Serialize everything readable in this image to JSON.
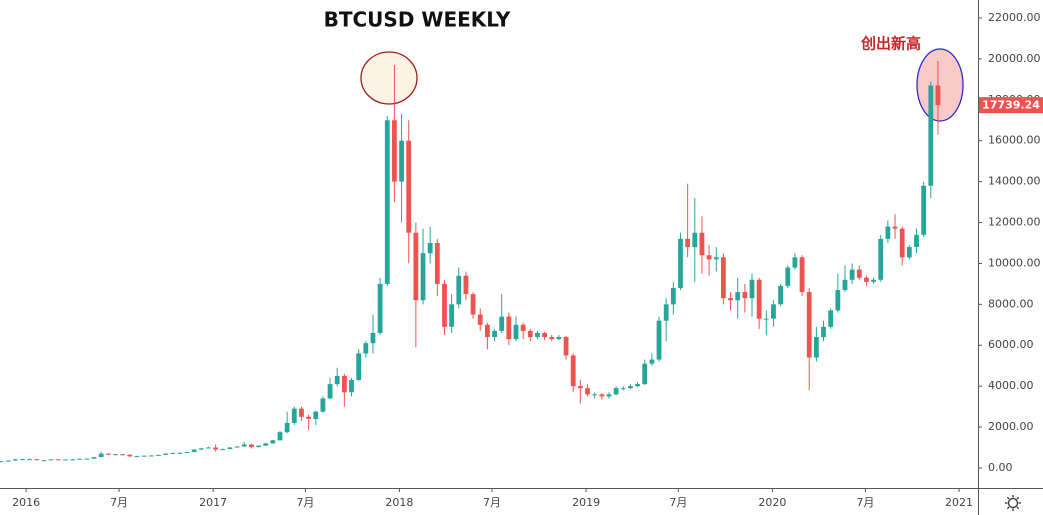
{
  "chart_data": {
    "type": "candlestick",
    "title": "BTCUSD WEEKLY",
    "annotation": "创出新高",
    "up_color": "#26a69a",
    "down_color": "#ef5350",
    "xlim": [
      -7.3,
      266.2
    ],
    "xticks": [
      {
        "value": 0,
        "label": "2016"
      },
      {
        "value": 26,
        "label": "7月"
      },
      {
        "value": 52.3,
        "label": "2017"
      },
      {
        "value": 78.1,
        "label": "7月"
      },
      {
        "value": 104.4,
        "label": "2018"
      },
      {
        "value": 130.3,
        "label": "7月"
      },
      {
        "value": 156.6,
        "label": "2019"
      },
      {
        "value": 182.4,
        "label": "7月"
      },
      {
        "value": 208.7,
        "label": "2020"
      },
      {
        "value": 234.7,
        "label": "7月"
      },
      {
        "value": 260.9,
        "label": "2021"
      }
    ],
    "ylim": [
      -980,
      22880
    ],
    "yticks": [
      {
        "value": 0,
        "label": "0.00"
      },
      {
        "value": 2000,
        "label": "2000.00"
      },
      {
        "value": 4000,
        "label": "4000.00"
      },
      {
        "value": 6000,
        "label": "6000.00"
      },
      {
        "value": 8000,
        "label": "8000.00"
      },
      {
        "value": 10000,
        "label": "10000.00"
      },
      {
        "value": 12000,
        "label": "12000.00"
      },
      {
        "value": 14000,
        "label": "14000.00"
      },
      {
        "value": 16000,
        "label": "16000.00"
      },
      {
        "value": 18000,
        "label": "18000.00"
      },
      {
        "value": 20000,
        "label": "20000.00"
      },
      {
        "value": 22000,
        "label": "22000.00"
      }
    ],
    "x": [
      -7,
      -5,
      -3,
      -1,
      1,
      3,
      5,
      7,
      9,
      11,
      13,
      15,
      17,
      19,
      21,
      23,
      25,
      27,
      29,
      31,
      33,
      35,
      37,
      39,
      41,
      43,
      45,
      47,
      49,
      51,
      53,
      55,
      57,
      59,
      61,
      63,
      65,
      67,
      69,
      71,
      73,
      75,
      77,
      79,
      81,
      83,
      85,
      87,
      89,
      91,
      93,
      95,
      97,
      99,
      101,
      103,
      105,
      107,
      109,
      111,
      113,
      115,
      117,
      119,
      121,
      123,
      125,
      127,
      129,
      131,
      133,
      135,
      137,
      139,
      141,
      143,
      145,
      147,
      149,
      151,
      153,
      155,
      157,
      159,
      161,
      163,
      165,
      167,
      169,
      171,
      173,
      175,
      177,
      179,
      181,
      183,
      185,
      187,
      189,
      191,
      193,
      195,
      197,
      199,
      201,
      203,
      205,
      207,
      209,
      211,
      213,
      215,
      217,
      219,
      221,
      223,
      225,
      227,
      229,
      231,
      233,
      235,
      237,
      239,
      241,
      243,
      245,
      247,
      249,
      251,
      253,
      255
    ],
    "open": [
      320,
      330,
      360,
      420,
      430,
      430,
      380,
      380,
      420,
      410,
      415,
      420,
      450,
      455,
      530,
      700,
      660,
      670,
      650,
      570,
      580,
      600,
      610,
      640,
      700,
      730,
      740,
      780,
      900,
      960,
      1000,
      900,
      920,
      1000,
      1050,
      1150,
      1020,
      1090,
      1200,
      1350,
      1750,
      2200,
      2900,
      2500,
      2400,
      2750,
      3400,
      4100,
      4500,
      3700,
      4300,
      5600,
      6100,
      6600,
      9000,
      17000,
      14000,
      16000,
      11500,
      8200,
      10500,
      11000,
      9000,
      6900,
      8000,
      9400,
      8500,
      7500,
      7000,
      6400,
      6700,
      7400,
      6300,
      7000,
      6700,
      6400,
      6600,
      6400,
      6300,
      6400,
      5500,
      4000,
      3900,
      3600,
      3600,
      3500,
      3600,
      3900,
      3900,
      4000,
      4100,
      5100,
      5300,
      7200,
      8000,
      8800,
      11200,
      10800,
      11500,
      10400,
      10200,
      10300,
      8300,
      8200,
      8600,
      8300,
      9200,
      7300,
      7300,
      8000,
      8900,
      9800,
      10300,
      8600,
      5400,
      6400,
      6900,
      7700,
      8700,
      9200,
      9700,
      9300,
      9100,
      9200,
      11200,
      11800,
      11700,
      10300,
      10800,
      11400,
      13800,
      18700
    ],
    "high": [
      345,
      380,
      440,
      460,
      455,
      435,
      395,
      430,
      440,
      425,
      430,
      460,
      470,
      545,
      780,
      720,
      690,
      680,
      660,
      600,
      610,
      620,
      650,
      720,
      750,
      760,
      790,
      920,
      980,
      1030,
      1150,
      950,
      1020,
      1070,
      1280,
      1180,
      1110,
      1220,
      1370,
      1800,
      2750,
      3000,
      3000,
      2600,
      2800,
      3500,
      4400,
      4900,
      4600,
      4400,
      5800,
      6200,
      7500,
      9300,
      17200,
      19700,
      17300,
      17000,
      12000,
      11700,
      11800,
      11200,
      9200,
      8500,
      9800,
      9600,
      8600,
      7800,
      7100,
      6800,
      8500,
      7600,
      7400,
      7100,
      6800,
      6700,
      6650,
      6500,
      6500,
      6450,
      5600,
      4300,
      4100,
      3700,
      3650,
      3700,
      4000,
      4000,
      4100,
      4200,
      5300,
      5600,
      7400,
      8300,
      9100,
      11500,
      13900,
      13200,
      12300,
      10900,
      10800,
      10500,
      8600,
      9300,
      9000,
      9500,
      9300,
      7700,
      8200,
      9000,
      9900,
      10500,
      10400,
      8800,
      6900,
      7200,
      7800,
      9500,
      9900,
      10000,
      9900,
      9400,
      9300,
      11400,
      12100,
      12400,
      11800,
      10900,
      11700,
      14000,
      18900,
      19900
    ],
    "low": [
      310,
      325,
      355,
      410,
      420,
      370,
      365,
      375,
      400,
      400,
      410,
      415,
      440,
      450,
      525,
      620,
      640,
      620,
      520,
      560,
      570,
      595,
      605,
      635,
      690,
      720,
      730,
      770,
      880,
      950,
      800,
      880,
      910,
      990,
      1040,
      950,
      1000,
      1080,
      1190,
      1340,
      1700,
      2100,
      2300,
      1850,
      2100,
      2700,
      3350,
      4000,
      3000,
      3500,
      4250,
      5400,
      5600,
      6500,
      8900,
      13000,
      12000,
      10000,
      5900,
      8000,
      10000,
      8400,
      6500,
      6600,
      7800,
      8200,
      7300,
      6700,
      5800,
      6200,
      6600,
      6000,
      6200,
      6300,
      6200,
      6300,
      6250,
      6200,
      6250,
      5300,
      3700,
      3150,
      3500,
      3400,
      3350,
      3400,
      3550,
      3800,
      3850,
      3950,
      4050,
      5000,
      5200,
      6200,
      7500,
      8700,
      10300,
      9100,
      9500,
      9400,
      9600,
      8000,
      7700,
      7300,
      7600,
      7400,
      6800,
      6500,
      6900,
      7900,
      8800,
      9700,
      8400,
      3800,
      5200,
      6200,
      6800,
      7600,
      8600,
      9000,
      9200,
      8900,
      9000,
      9100,
      11000,
      11200,
      9900,
      10200,
      10500,
      11300,
      13200,
      16300
    ],
    "close": [
      330,
      360,
      420,
      430,
      430,
      380,
      380,
      420,
      410,
      415,
      420,
      450,
      455,
      530,
      700,
      660,
      670,
      650,
      570,
      580,
      600,
      610,
      640,
      700,
      730,
      740,
      780,
      900,
      960,
      1000,
      900,
      920,
      1000,
      1050,
      1150,
      1020,
      1090,
      1200,
      1350,
      1750,
      2200,
      2900,
      2500,
      2400,
      2750,
      3400,
      4100,
      4500,
      3700,
      4300,
      5600,
      6100,
      6600,
      9000,
      17000,
      14000,
      16000,
      11500,
      8200,
      10500,
      11000,
      9000,
      6900,
      8000,
      9400,
      8500,
      7500,
      7000,
      6400,
      6700,
      7400,
      6300,
      7000,
      6700,
      6400,
      6600,
      6400,
      6300,
      6400,
      5500,
      4000,
      3900,
      3600,
      3600,
      3500,
      3600,
      3900,
      3900,
      4000,
      4100,
      5100,
      5300,
      7200,
      8000,
      8800,
      11200,
      10800,
      11500,
      10400,
      10200,
      10300,
      8300,
      8200,
      8600,
      8300,
      9200,
      7300,
      7300,
      8000,
      8900,
      9800,
      10300,
      8600,
      5400,
      6400,
      6900,
      7700,
      8700,
      9200,
      9700,
      9300,
      9100,
      9200,
      11200,
      11800,
      11700,
      10300,
      10800,
      11400,
      13800,
      18700,
      17739.24
    ]
  }
}
